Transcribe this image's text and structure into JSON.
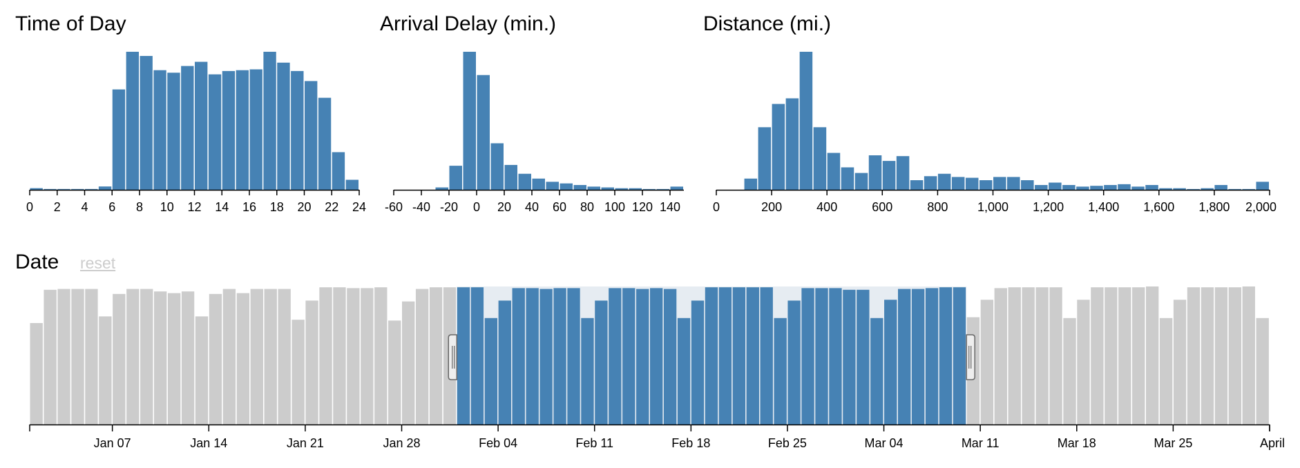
{
  "colors": {
    "selected": "#4682b4",
    "unselected": "#cccccc",
    "brush": "#e6ecf2",
    "axis": "#000000"
  },
  "chart_data": [
    {
      "type": "bar",
      "title": "Time of Day",
      "xlim": [
        0,
        24
      ],
      "bin_width": 1,
      "bins": [
        0,
        1,
        2,
        3,
        4,
        5,
        6,
        7,
        8,
        9,
        10,
        11,
        12,
        13,
        14,
        15,
        16,
        17,
        18,
        19,
        20,
        21,
        22,
        23
      ],
      "values": [
        2,
        1,
        1,
        1,
        1,
        4,
        120,
        165,
        160,
        143,
        140,
        148,
        153,
        138,
        142,
        143,
        144,
        165,
        152,
        142,
        130,
        110,
        45,
        12
      ],
      "xticks": [
        "0",
        "2",
        "4",
        "6",
        "8",
        "10",
        "12",
        "14",
        "16",
        "18",
        "20",
        "22",
        "24"
      ],
      "xtick_values": [
        0,
        2,
        4,
        6,
        8,
        10,
        12,
        14,
        16,
        18,
        20,
        22,
        24
      ]
    },
    {
      "type": "bar",
      "title": "Arrival Delay (min.)",
      "xlim": [
        -60,
        150
      ],
      "bin_width": 10,
      "bins": [
        -60,
        -50,
        -40,
        -30,
        -20,
        -10,
        0,
        10,
        20,
        30,
        40,
        50,
        60,
        70,
        80,
        90,
        100,
        110,
        120,
        130,
        140
      ],
      "values": [
        0,
        0,
        0,
        3,
        30,
        172,
        143,
        58,
        31,
        20,
        14,
        10,
        8,
        6,
        4,
        3,
        2,
        2,
        1,
        1,
        4
      ],
      "xticks": [
        "-60",
        "-40",
        "-20",
        "0",
        "20",
        "40",
        "60",
        "80",
        "100",
        "120",
        "140"
      ],
      "xtick_values": [
        -60,
        -40,
        -20,
        0,
        20,
        40,
        60,
        80,
        100,
        120,
        140
      ]
    },
    {
      "type": "bar",
      "title": "Distance (mi.)",
      "xlim": [
        0,
        2000
      ],
      "bin_width": 50,
      "bins": [
        0,
        50,
        100,
        150,
        200,
        250,
        300,
        350,
        400,
        450,
        500,
        550,
        600,
        650,
        700,
        750,
        800,
        850,
        900,
        950,
        1000,
        1050,
        1100,
        1150,
        1200,
        1250,
        1300,
        1350,
        1400,
        1450,
        1500,
        1550,
        1600,
        1650,
        1700,
        1750,
        1800,
        1850,
        1900,
        1950
      ],
      "values": [
        0,
        0,
        14,
        78,
        107,
        114,
        172,
        78,
        46,
        28,
        21,
        43,
        36,
        42,
        12,
        17,
        20,
        16,
        15,
        12,
        16,
        16,
        12,
        6,
        9,
        6,
        4,
        5,
        6,
        7,
        4,
        6,
        2,
        2,
        1,
        2,
        6,
        1,
        1,
        10
      ],
      "xticks": [
        "0",
        "200",
        "400",
        "600",
        "800",
        "1,000",
        "1,200",
        "1,400",
        "1,600",
        "1,800",
        "2,000"
      ],
      "xtick_values": [
        0,
        200,
        400,
        600,
        800,
        1000,
        1200,
        1400,
        1600,
        1800,
        2000
      ]
    },
    {
      "type": "bar",
      "title": "Date",
      "reset_label": "reset",
      "bin_unit": "day",
      "start_date": "Jan 01",
      "end_date": "April",
      "brush_range": [
        "Feb 01",
        "Mar 09"
      ],
      "values": [
        122,
        162,
        163,
        163,
        163,
        130,
        157,
        163,
        163,
        160,
        158,
        160,
        130,
        157,
        163,
        158,
        163,
        163,
        163,
        126,
        149,
        165,
        165,
        164,
        164,
        165,
        125,
        148,
        163,
        165,
        165,
        165,
        165,
        128,
        149,
        164,
        164,
        163,
        164,
        164,
        128,
        149,
        164,
        164,
        163,
        164,
        163,
        128,
        149,
        165,
        165,
        165,
        165,
        165,
        128,
        149,
        164,
        164,
        164,
        162,
        162,
        128,
        150,
        163,
        163,
        164,
        165,
        165,
        129,
        150,
        164,
        165,
        165,
        165,
        165,
        128,
        150,
        165,
        165,
        165,
        165,
        166,
        128,
        150,
        165,
        165,
        165,
        165,
        166,
        128
      ],
      "xticks": [
        "Jan 07",
        "Jan 14",
        "Jan 21",
        "Jan 28",
        "Feb 04",
        "Feb 11",
        "Feb 18",
        "Feb 25",
        "Mar 04",
        "Mar 11",
        "Mar 18",
        "Mar 25",
        "April"
      ],
      "xtick_day_index": [
        6,
        13,
        20,
        27,
        34,
        41,
        48,
        55,
        62,
        69,
        76,
        83,
        90
      ]
    }
  ]
}
